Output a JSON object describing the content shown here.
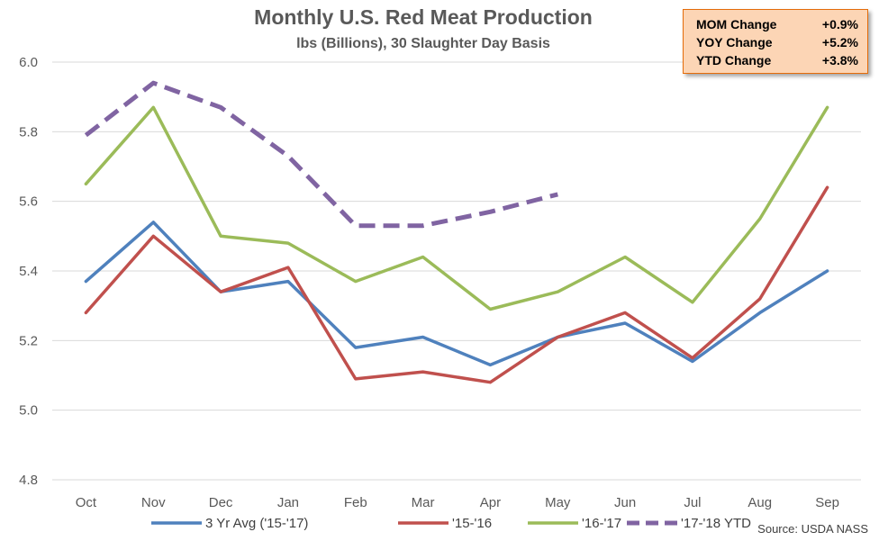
{
  "chart_data": {
    "type": "line",
    "title": "Monthly U.S. Red Meat Production",
    "subtitle": "lbs (Billions), 30 Slaughter Day Basis",
    "categories": [
      "Oct",
      "Nov",
      "Dec",
      "Jan",
      "Feb",
      "Mar",
      "Apr",
      "May",
      "Jun",
      "Jul",
      "Aug",
      "Sep"
    ],
    "ylim": [
      4.8,
      6.0
    ],
    "yticks": [
      "4.8",
      "5.0",
      "5.2",
      "5.4",
      "5.6",
      "5.8",
      "6.0"
    ],
    "grid": true,
    "legend_position": "bottom",
    "series": [
      {
        "name": "3 Yr Avg ('15-'17)",
        "color": "#4f81bd",
        "dashed": false,
        "values": [
          5.37,
          5.54,
          5.34,
          5.37,
          5.18,
          5.21,
          5.13,
          5.21,
          5.25,
          5.14,
          5.28,
          5.4
        ]
      },
      {
        "name": "'15-'16",
        "color": "#c0504d",
        "dashed": false,
        "values": [
          5.28,
          5.5,
          5.34,
          5.41,
          5.09,
          5.11,
          5.08,
          5.21,
          5.28,
          5.15,
          5.32,
          5.64
        ]
      },
      {
        "name": "'16-'17",
        "color": "#9bbb59",
        "dashed": false,
        "values": [
          5.65,
          5.87,
          5.5,
          5.48,
          5.37,
          5.44,
          5.29,
          5.34,
          5.44,
          5.31,
          5.55,
          5.87
        ]
      },
      {
        "name": "'17-'18 YTD",
        "color": "#8064a2",
        "dashed": true,
        "values": [
          5.79,
          5.94,
          5.87,
          5.73,
          5.53,
          5.53,
          5.57,
          5.62,
          null,
          null,
          null,
          null
        ]
      }
    ]
  },
  "stats": [
    {
      "label": "MOM Change",
      "value": "+0.9%"
    },
    {
      "label": "YOY Change",
      "value": "+5.2%"
    },
    {
      "label": "YTD Change",
      "value": "+3.8%"
    }
  ],
  "source": "Source: USDA NASS"
}
